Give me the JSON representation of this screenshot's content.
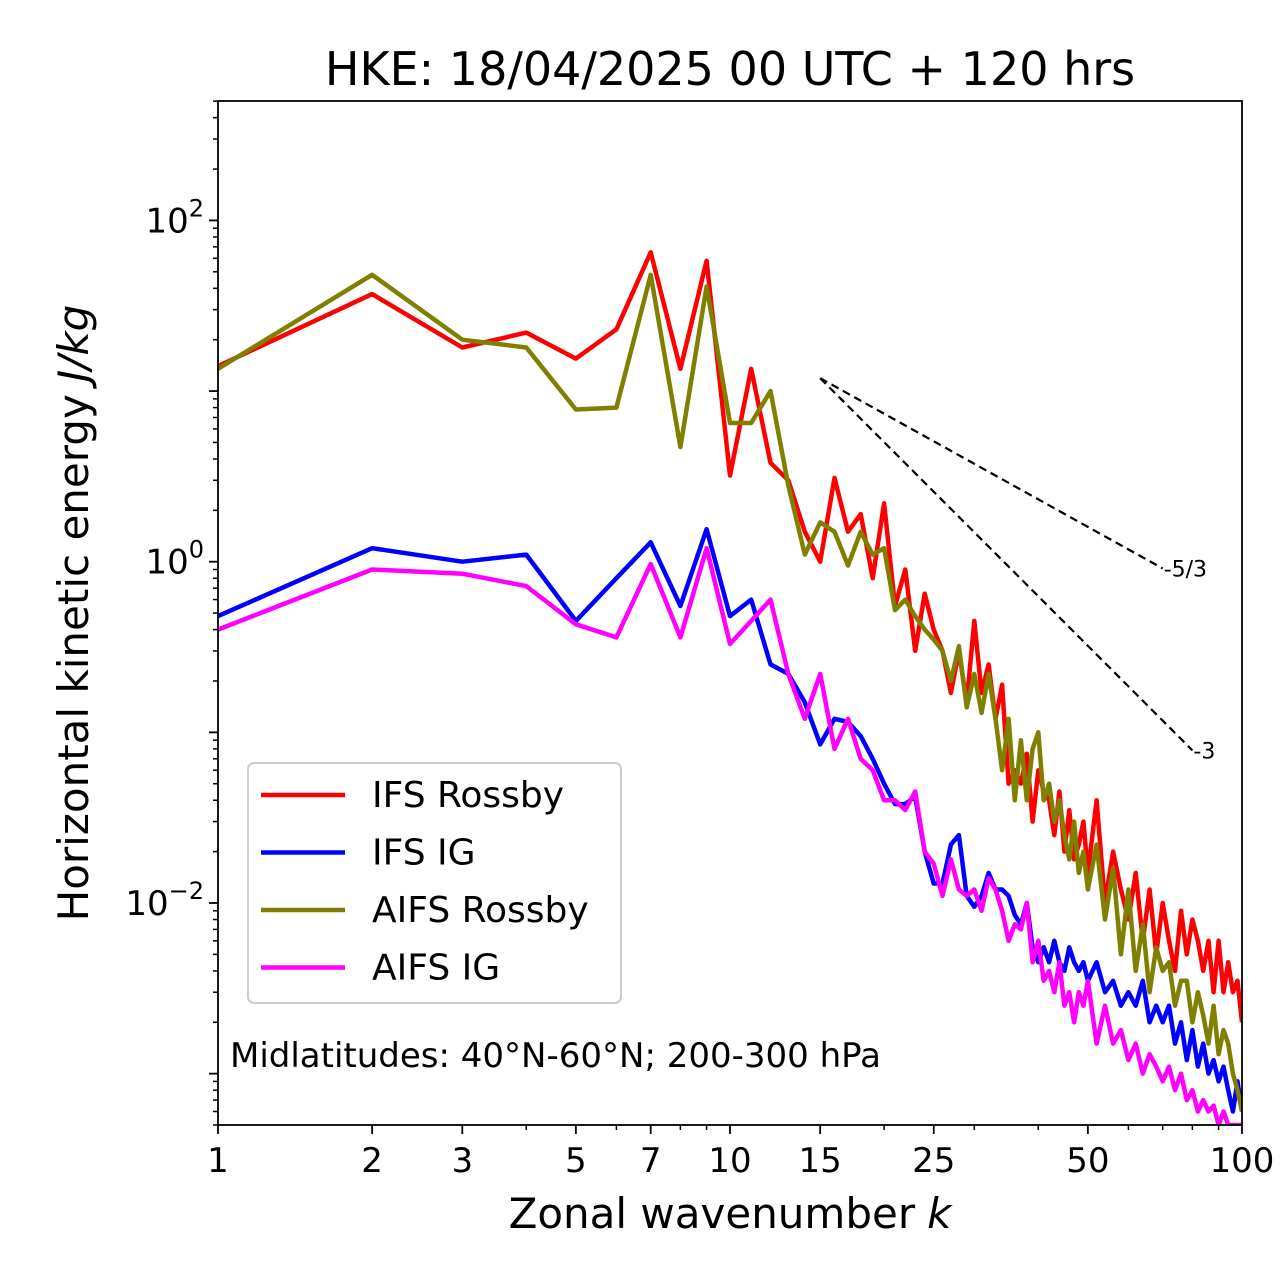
{
  "chart_data": {
    "type": "line",
    "title": "HKE: 18/04/2025 00 UTC + 120 hrs",
    "xlabel": "Zonal wavenumber",
    "xlabel_italic": "k",
    "ylabel": "Horizontal kinetic energy",
    "ylabel_italic": "J/kg",
    "xscale": "log",
    "yscale": "log",
    "xlim": [
      1,
      100
    ],
    "ylim": [
      0.0005,
      501
    ],
    "xticks": [
      1,
      2,
      3,
      5,
      7,
      10,
      15,
      25,
      50,
      100
    ],
    "xtick_labels": [
      "1",
      "2",
      "3",
      "5",
      "7",
      "10",
      "15",
      "25",
      "50",
      "100"
    ],
    "yticks": [
      {
        "value": 100,
        "base": "10",
        "exp": "2"
      },
      {
        "value": 1,
        "base": "10",
        "exp": "0"
      },
      {
        "value": 0.01,
        "base": "10",
        "exp": "−2"
      }
    ],
    "annotation": "Midlatitudes: 40°N-60°N; 200-300 hPa",
    "legend_position": "lower-left",
    "reference_lines": [
      {
        "label": "-5/3",
        "slope": -1.6667,
        "x": [
          15,
          70
        ],
        "y0": 11.9
      },
      {
        "label": "-3",
        "slope": -3,
        "x": [
          15,
          80
        ],
        "y0": 11.9
      }
    ],
    "series": [
      {
        "name": "IFS Rossby",
        "color": "#ff0000",
        "points": [
          [
            1,
            14
          ],
          [
            2,
            37
          ],
          [
            3,
            18
          ],
          [
            4,
            22
          ],
          [
            5,
            15.5
          ],
          [
            6,
            23
          ],
          [
            7,
            65
          ],
          [
            8,
            13.5
          ],
          [
            9,
            58
          ],
          [
            10,
            3.2
          ],
          [
            11,
            13.5
          ],
          [
            12,
            3.8
          ],
          [
            13,
            3.0
          ],
          [
            14,
            1.5
          ],
          [
            15,
            1.0
          ],
          [
            16,
            3.1
          ],
          [
            17,
            1.5
          ],
          [
            18,
            1.9
          ],
          [
            19,
            0.8
          ],
          [
            20,
            2.2
          ],
          [
            21,
            0.55
          ],
          [
            22,
            0.9
          ],
          [
            23,
            0.3
          ],
          [
            24,
            0.65
          ],
          [
            25,
            0.4
          ],
          [
            26,
            0.3
          ],
          [
            27,
            0.17
          ],
          [
            28,
            0.3
          ],
          [
            29,
            0.15
          ],
          [
            30,
            0.45
          ],
          [
            31,
            0.17
          ],
          [
            32,
            0.25
          ],
          [
            33,
            0.12
          ],
          [
            34,
            0.19
          ],
          [
            35,
            0.05
          ],
          [
            36,
            0.06
          ],
          [
            37,
            0.05
          ],
          [
            38,
            0.075
          ],
          [
            39,
            0.03
          ],
          [
            40,
            0.06
          ],
          [
            41,
            0.045
          ],
          [
            42,
            0.04
          ],
          [
            43,
            0.025
          ],
          [
            44,
            0.045
          ],
          [
            45,
            0.02
          ],
          [
            46,
            0.035
          ],
          [
            47,
            0.018
          ],
          [
            48,
            0.022
          ],
          [
            49,
            0.03
          ],
          [
            50,
            0.015
          ],
          [
            52,
            0.04
          ],
          [
            54,
            0.01
          ],
          [
            56,
            0.02
          ],
          [
            58,
            0.012
          ],
          [
            60,
            0.008
          ],
          [
            62,
            0.015
          ],
          [
            64,
            0.006
          ],
          [
            66,
            0.012
          ],
          [
            68,
            0.005
          ],
          [
            70,
            0.01
          ],
          [
            72,
            0.006
          ],
          [
            74,
            0.004
          ],
          [
            76,
            0.009
          ],
          [
            78,
            0.005
          ],
          [
            80,
            0.008
          ],
          [
            82,
            0.006
          ],
          [
            84,
            0.004
          ],
          [
            86,
            0.006
          ],
          [
            88,
            0.003
          ],
          [
            90,
            0.006
          ],
          [
            92,
            0.003
          ],
          [
            94,
            0.0045
          ],
          [
            96,
            0.003
          ],
          [
            98,
            0.0035
          ],
          [
            100,
            0.002
          ]
        ]
      },
      {
        "name": "IFS IG",
        "color": "#0000ff",
        "points": [
          [
            1,
            0.48
          ],
          [
            2,
            1.2
          ],
          [
            3,
            1.0
          ],
          [
            4,
            1.1
          ],
          [
            5,
            0.45
          ],
          [
            6,
            0.8
          ],
          [
            7,
            1.3
          ],
          [
            8,
            0.55
          ],
          [
            9,
            1.55
          ],
          [
            10,
            0.48
          ],
          [
            11,
            0.6
          ],
          [
            12,
            0.25
          ],
          [
            13,
            0.22
          ],
          [
            14,
            0.15
          ],
          [
            15,
            0.085
          ],
          [
            16,
            0.12
          ],
          [
            17,
            0.115
          ],
          [
            18,
            0.095
          ],
          [
            19,
            0.07
          ],
          [
            20,
            0.05
          ],
          [
            21,
            0.038
          ],
          [
            22,
            0.038
          ],
          [
            23,
            0.042
          ],
          [
            24,
            0.02
          ],
          [
            25,
            0.013
          ],
          [
            26,
            0.013
          ],
          [
            27,
            0.022
          ],
          [
            28,
            0.025
          ],
          [
            29,
            0.011
          ],
          [
            30,
            0.0095
          ],
          [
            31,
            0.011
          ],
          [
            32,
            0.015
          ],
          [
            33,
            0.012
          ],
          [
            34,
            0.012
          ],
          [
            35,
            0.011
          ],
          [
            36,
            0.0085
          ],
          [
            37,
            0.0075
          ],
          [
            38,
            0.01
          ],
          [
            39,
            0.0055
          ],
          [
            40,
            0.0045
          ],
          [
            41,
            0.0055
          ],
          [
            42,
            0.0045
          ],
          [
            43,
            0.006
          ],
          [
            44,
            0.0045
          ],
          [
            45,
            0.004
          ],
          [
            46,
            0.0055
          ],
          [
            47,
            0.0045
          ],
          [
            48,
            0.004
          ],
          [
            49,
            0.0045
          ],
          [
            50,
            0.0035
          ],
          [
            52,
            0.0045
          ],
          [
            54,
            0.003
          ],
          [
            56,
            0.0035
          ],
          [
            58,
            0.0025
          ],
          [
            60,
            0.003
          ],
          [
            62,
            0.0025
          ],
          [
            64,
            0.0035
          ],
          [
            66,
            0.002
          ],
          [
            68,
            0.0025
          ],
          [
            70,
            0.002
          ],
          [
            72,
            0.0025
          ],
          [
            74,
            0.0015
          ],
          [
            76,
            0.002
          ],
          [
            78,
            0.0012
          ],
          [
            80,
            0.0018
          ],
          [
            82,
            0.0011
          ],
          [
            84,
            0.0015
          ],
          [
            86,
            0.001
          ],
          [
            88,
            0.0012
          ],
          [
            90,
            0.0009
          ],
          [
            92,
            0.0011
          ],
          [
            94,
            0.0008
          ],
          [
            96,
            0.0006
          ],
          [
            98,
            0.0009
          ],
          [
            100,
            0.0006
          ]
        ]
      },
      {
        "name": "AIFS Rossby",
        "color": "#808000",
        "points": [
          [
            1,
            13.5
          ],
          [
            2,
            48
          ],
          [
            3,
            20
          ],
          [
            4,
            18
          ],
          [
            5,
            7.8
          ],
          [
            6,
            8.0
          ],
          [
            7,
            48
          ],
          [
            8,
            4.7
          ],
          [
            9,
            41
          ],
          [
            10,
            6.5
          ],
          [
            11,
            6.5
          ],
          [
            12,
            10
          ],
          [
            13,
            2.8
          ],
          [
            14,
            1.1
          ],
          [
            15,
            1.7
          ],
          [
            16,
            1.5
          ],
          [
            17,
            0.95
          ],
          [
            18,
            1.5
          ],
          [
            19,
            1.1
          ],
          [
            20,
            1.2
          ],
          [
            21,
            0.52
          ],
          [
            22,
            0.6
          ],
          [
            23,
            0.48
          ],
          [
            24,
            0.4
          ],
          [
            25,
            0.35
          ],
          [
            26,
            0.3
          ],
          [
            27,
            0.2
          ],
          [
            28,
            0.32
          ],
          [
            29,
            0.14
          ],
          [
            30,
            0.22
          ],
          [
            31,
            0.13
          ],
          [
            32,
            0.22
          ],
          [
            33,
            0.12
          ],
          [
            34,
            0.06
          ],
          [
            35,
            0.12
          ],
          [
            36,
            0.04
          ],
          [
            37,
            0.09
          ],
          [
            38,
            0.04
          ],
          [
            39,
            0.08
          ],
          [
            40,
            0.1
          ],
          [
            41,
            0.04
          ],
          [
            42,
            0.05
          ],
          [
            43,
            0.03
          ],
          [
            44,
            0.04
          ],
          [
            45,
            0.025
          ],
          [
            46,
            0.018
          ],
          [
            47,
            0.03
          ],
          [
            48,
            0.015
          ],
          [
            49,
            0.02
          ],
          [
            50,
            0.012
          ],
          [
            52,
            0.022
          ],
          [
            54,
            0.008
          ],
          [
            56,
            0.016
          ],
          [
            58,
            0.005
          ],
          [
            60,
            0.012
          ],
          [
            62,
            0.004
          ],
          [
            64,
            0.0075
          ],
          [
            66,
            0.003
          ],
          [
            68,
            0.0055
          ],
          [
            70,
            0.004
          ],
          [
            72,
            0.0045
          ],
          [
            74,
            0.0025
          ],
          [
            76,
            0.0035
          ],
          [
            78,
            0.0035
          ],
          [
            80,
            0.002
          ],
          [
            82,
            0.003
          ],
          [
            84,
            0.0022
          ],
          [
            86,
            0.0015
          ],
          [
            88,
            0.0025
          ],
          [
            90,
            0.0013
          ],
          [
            92,
            0.0018
          ],
          [
            94,
            0.0015
          ],
          [
            96,
            0.001
          ],
          [
            98,
            0.0008
          ],
          [
            100,
            0.0006
          ]
        ]
      },
      {
        "name": "AIFS IG",
        "color": "#ff00ff",
        "points": [
          [
            1,
            0.4
          ],
          [
            2,
            0.9
          ],
          [
            3,
            0.85
          ],
          [
            4,
            0.72
          ],
          [
            5,
            0.43
          ],
          [
            6,
            0.36
          ],
          [
            7,
            0.97
          ],
          [
            8,
            0.36
          ],
          [
            9,
            1.2
          ],
          [
            10,
            0.33
          ],
          [
            11,
            0.45
          ],
          [
            12,
            0.6
          ],
          [
            13,
            0.22
          ],
          [
            14,
            0.12
          ],
          [
            15,
            0.22
          ],
          [
            16,
            0.08
          ],
          [
            17,
            0.12
          ],
          [
            18,
            0.07
          ],
          [
            19,
            0.06
          ],
          [
            20,
            0.04
          ],
          [
            21,
            0.04
          ],
          [
            22,
            0.035
          ],
          [
            23,
            0.045
          ],
          [
            24,
            0.02
          ],
          [
            25,
            0.017
          ],
          [
            26,
            0.011
          ],
          [
            27,
            0.018
          ],
          [
            28,
            0.012
          ],
          [
            29,
            0.011
          ],
          [
            30,
            0.012
          ],
          [
            31,
            0.009
          ],
          [
            32,
            0.014
          ],
          [
            33,
            0.012
          ],
          [
            34,
            0.009
          ],
          [
            35,
            0.006
          ],
          [
            36,
            0.0075
          ],
          [
            37,
            0.007
          ],
          [
            38,
            0.01
          ],
          [
            39,
            0.0045
          ],
          [
            40,
            0.006
          ],
          [
            41,
            0.0035
          ],
          [
            42,
            0.004
          ],
          [
            43,
            0.003
          ],
          [
            44,
            0.0045
          ],
          [
            45,
            0.0025
          ],
          [
            46,
            0.003
          ],
          [
            47,
            0.002
          ],
          [
            48,
            0.003
          ],
          [
            49,
            0.0025
          ],
          [
            50,
            0.0035
          ],
          [
            52,
            0.0015
          ],
          [
            54,
            0.0025
          ],
          [
            56,
            0.0015
          ],
          [
            58,
            0.0018
          ],
          [
            60,
            0.0012
          ],
          [
            62,
            0.0015
          ],
          [
            64,
            0.001
          ],
          [
            66,
            0.0013
          ],
          [
            68,
            0.0011
          ],
          [
            70,
            0.0009
          ],
          [
            72,
            0.0011
          ],
          [
            74,
            0.0008
          ],
          [
            76,
            0.001
          ],
          [
            78,
            0.0007
          ],
          [
            80,
            0.0008
          ],
          [
            82,
            0.0006
          ],
          [
            84,
            0.0007
          ],
          [
            86,
            0.0006
          ],
          [
            88,
            0.00065
          ],
          [
            90,
            0.0005
          ],
          [
            92,
            0.0006
          ],
          [
            94,
            0.0005
          ],
          [
            96,
            0.0005
          ],
          [
            98,
            0.0005
          ],
          [
            100,
            0.0005
          ]
        ]
      }
    ]
  }
}
